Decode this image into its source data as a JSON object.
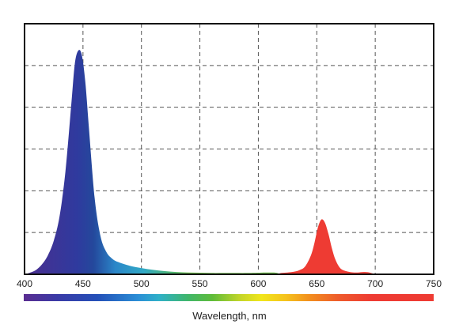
{
  "chart_data": {
    "type": "area",
    "title": "",
    "xlabel": "Wavelength, nm",
    "ylabel": "",
    "xlim": [
      400,
      750
    ],
    "ylim": [
      0,
      1.12
    ],
    "x_ticks": [
      400,
      450,
      500,
      550,
      600,
      650,
      700,
      750
    ],
    "x_tick_labels": [
      "400",
      "450",
      "500",
      "550",
      "600",
      "650",
      "700",
      "750"
    ],
    "grid": true,
    "grid_style": "dashed",
    "legend": "none",
    "spectrum_color_bar": true,
    "series": [
      {
        "color_mode": "wavelength-gradient",
        "x": [
          400,
          405,
          410,
          415,
          420,
          425,
          430,
          435,
          440,
          443,
          446,
          449,
          452,
          455,
          460,
          465,
          470,
          475,
          480,
          490,
          500,
          510,
          520,
          530,
          540,
          550,
          560,
          570,
          580,
          590,
          600,
          605,
          610,
          615,
          620
        ],
        "y": [
          0.0,
          0.008,
          0.02,
          0.045,
          0.085,
          0.15,
          0.26,
          0.46,
          0.76,
          0.94,
          1.0,
          0.98,
          0.86,
          0.66,
          0.34,
          0.17,
          0.1,
          0.07,
          0.055,
          0.038,
          0.028,
          0.02,
          0.014,
          0.01,
          0.008,
          0.007,
          0.006,
          0.006,
          0.006,
          0.006,
          0.007,
          0.008,
          0.008,
          0.007,
          0.0
        ]
      },
      {
        "color": "#ee3b33",
        "x": [
          615,
          620,
          625,
          630,
          635,
          640,
          645,
          648,
          651,
          654,
          657,
          660,
          663,
          666,
          670,
          675,
          680,
          685,
          690,
          695,
          700
        ],
        "y": [
          0.0,
          0.006,
          0.008,
          0.011,
          0.018,
          0.035,
          0.085,
          0.14,
          0.21,
          0.245,
          0.23,
          0.18,
          0.115,
          0.065,
          0.028,
          0.014,
          0.009,
          0.008,
          0.01,
          0.008,
          0.0
        ]
      }
    ],
    "colors": {
      "spectrum_stops": [
        "#5a2d91",
        "#3b3aa6",
        "#2450b8",
        "#2b8fd6",
        "#2fb0c8",
        "#3fb66b",
        "#5fbc3a",
        "#c6d629",
        "#f1e61b",
        "#f5c21d",
        "#f28c1e",
        "#ee5a2c",
        "#ee3b33",
        "#ee3b33"
      ],
      "frame": "#111111",
      "grid": "#555555"
    }
  }
}
